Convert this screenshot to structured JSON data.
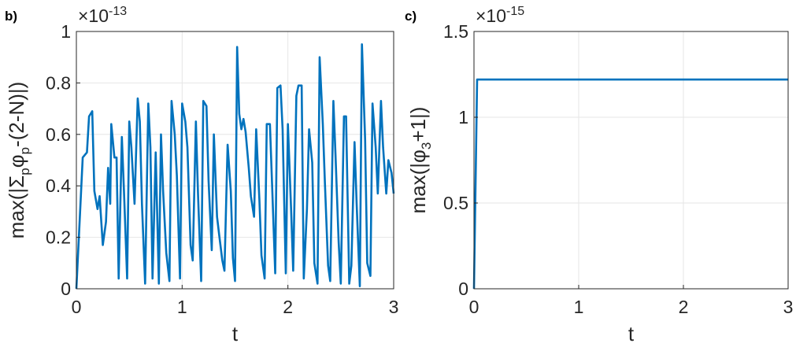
{
  "chart_data": [
    {
      "type": "line",
      "panel_label": "b)",
      "xlabel": "t",
      "ylabel_parts": {
        "base": "max(|Σ",
        "s1": "p",
        "mid": "φ",
        "s2": "p",
        "tail": "-(2-N)|)"
      },
      "exponent": {
        "base": "×10",
        "power": "-13"
      },
      "xlim": [
        0,
        3
      ],
      "ylim": [
        0,
        1
      ],
      "xticks": [
        0,
        1,
        2,
        3
      ],
      "xtick_labels": [
        "0",
        "1",
        "2",
        "3"
      ],
      "yticks": [
        0,
        0.2,
        0.4,
        0.6,
        0.8,
        1
      ],
      "ytick_labels": [
        "0",
        "0.2",
        "0.4",
        "0.6",
        "0.8",
        "1"
      ],
      "grid": true,
      "line_color": "#0072BD",
      "series": [
        {
          "x": [
            0,
            0.06,
            0.1,
            0.12,
            0.15,
            0.17,
            0.2,
            0.22,
            0.25,
            0.28,
            0.3,
            0.32,
            0.33,
            0.36,
            0.38,
            0.4,
            0.43,
            0.45,
            0.48,
            0.5,
            0.52,
            0.55,
            0.58,
            0.6,
            0.62,
            0.65,
            0.68,
            0.7,
            0.72,
            0.75,
            0.78,
            0.8,
            0.82,
            0.85,
            0.88,
            0.9,
            0.93,
            0.95,
            0.98,
            1.0,
            1.03,
            1.05,
            1.08,
            1.1,
            1.13,
            1.15,
            1.18,
            1.2,
            1.23,
            1.25,
            1.28,
            1.3,
            1.33,
            1.35,
            1.38,
            1.4,
            1.43,
            1.46,
            1.48,
            1.5,
            1.52,
            1.54,
            1.56,
            1.58,
            1.6,
            1.63,
            1.65,
            1.68,
            1.7,
            1.73,
            1.75,
            1.78,
            1.8,
            1.83,
            1.85,
            1.88,
            1.9,
            1.93,
            1.95,
            1.98,
            2.0,
            2.03,
            2.05,
            2.08,
            2.1,
            2.13,
            2.15,
            2.18,
            2.2,
            2.23,
            2.25,
            2.28,
            2.3,
            2.33,
            2.35,
            2.38,
            2.4,
            2.43,
            2.45,
            2.48,
            2.5,
            2.53,
            2.55,
            2.58,
            2.6,
            2.63,
            2.65,
            2.68,
            2.7,
            2.73,
            2.75,
            2.78,
            2.8,
            2.83,
            2.85,
            2.88,
            2.9,
            2.93,
            2.95,
            2.98,
            3.0
          ],
          "y": [
            0,
            0.51,
            0.53,
            0.67,
            0.69,
            0.38,
            0.31,
            0.36,
            0.17,
            0.26,
            0.47,
            0.33,
            0.64,
            0.51,
            0.51,
            0.04,
            0.59,
            0.38,
            0.04,
            0.65,
            0.55,
            0.33,
            0.74,
            0.65,
            0.33,
            0.02,
            0.72,
            0.55,
            0.04,
            0.53,
            0.02,
            0.6,
            0.38,
            0.14,
            0.03,
            0.73,
            0.6,
            0.44,
            0.04,
            0.72,
            0.65,
            0.55,
            0.17,
            0.11,
            0.65,
            0.37,
            0.03,
            0.73,
            0.71,
            0.42,
            0.15,
            0.6,
            0.28,
            0.21,
            0.11,
            0.07,
            0.56,
            0.38,
            0.12,
            0.03,
            0.94,
            0.68,
            0.62,
            0.66,
            0.61,
            0.47,
            0.36,
            0.28,
            0.62,
            0.35,
            0.13,
            0.04,
            0.64,
            0.64,
            0.41,
            0.06,
            0.78,
            0.79,
            0.62,
            0.06,
            0.64,
            0.31,
            0.07,
            0.75,
            0.79,
            0.79,
            0.04,
            0.31,
            0.62,
            0.49,
            0.1,
            0.02,
            0.9,
            0.64,
            0.41,
            0.09,
            0.03,
            0.73,
            0.52,
            0.18,
            0.02,
            0.67,
            0.67,
            0.02,
            0.09,
            0.57,
            0.33,
            0.01,
            0.95,
            0.58,
            0.1,
            0.05,
            0.72,
            0.55,
            0.37,
            0.73,
            0.55,
            0.37,
            0.5,
            0.45,
            0.37
          ]
        }
      ]
    },
    {
      "type": "line",
      "panel_label": "c)",
      "xlabel": "t",
      "ylabel_parts": {
        "base": "max(|φ",
        "s1": "3",
        "tail": "+1|)"
      },
      "exponent": {
        "base": "×10",
        "power": "-15"
      },
      "xlim": [
        0,
        3
      ],
      "ylim": [
        0,
        1.5
      ],
      "xticks": [
        0,
        1,
        2,
        3
      ],
      "xtick_labels": [
        "0",
        "1",
        "2",
        "3"
      ],
      "yticks": [
        0,
        0.5,
        1,
        1.5
      ],
      "ytick_labels": [
        "0",
        "0.5",
        "1",
        "1.5"
      ],
      "grid": true,
      "line_color": "#0072BD",
      "series": [
        {
          "x": [
            0,
            0.03,
            3.0
          ],
          "y": [
            0,
            1.22,
            1.22
          ]
        }
      ]
    }
  ]
}
